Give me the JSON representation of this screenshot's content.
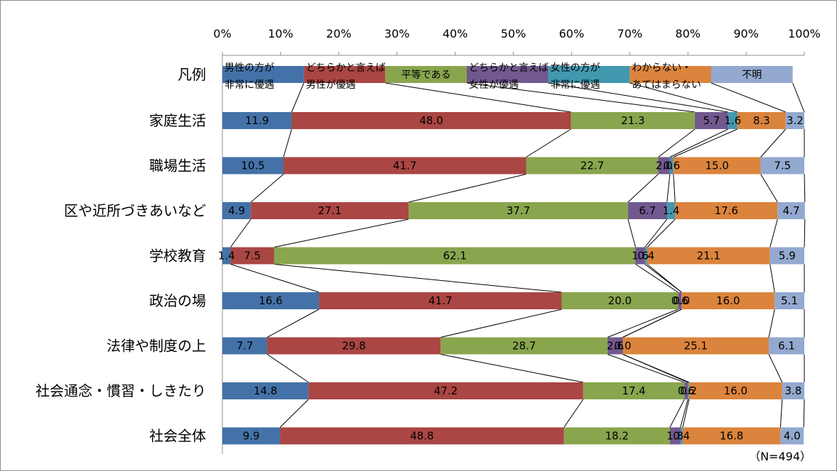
{
  "chart_data": {
    "type": "bar",
    "orientation": "horizontal",
    "stacked": "100%",
    "xlim": [
      0,
      100
    ],
    "x_ticks": [
      "0%",
      "10%",
      "20%",
      "30%",
      "40%",
      "50%",
      "60%",
      "70%",
      "80%",
      "90%",
      "100%"
    ],
    "legend_row_label": "凡例",
    "legend": [
      {
        "name": "男性の方が非常に優遇",
        "line1": "男性の方が",
        "line2": "非常に優遇",
        "color": "#4472a8",
        "width": 14
      },
      {
        "name": "どちらかと言えば男性が優遇",
        "line1": "どちらかと言えば",
        "line2": "男性が優遇",
        "color": "#aa4643",
        "width": 14
      },
      {
        "name": "平等である",
        "line1": "平等である",
        "line2": "",
        "color": "#89a54e",
        "width": 14
      },
      {
        "name": "どちらかと言えば女性が優遇",
        "line1": "どちらかと言えば",
        "line2": "女性が優遇",
        "color": "#71588f",
        "width": 14
      },
      {
        "name": "女性の方が非常に優遇",
        "line1": "女性の方が",
        "line2": "非常に優遇",
        "color": "#4198af",
        "width": 14
      },
      {
        "name": "わからない・あてはまらない",
        "line1": "わからない・",
        "line2": "あてはまらない",
        "color": "#db843d",
        "width": 14
      },
      {
        "name": "不明",
        "line1": "不明",
        "line2": "",
        "color": "#93a9cf",
        "width": 14
      }
    ],
    "categories": [
      "家庭生活",
      "職場生活",
      "区や近所づきあいなど",
      "学校教育",
      "政治の場",
      "法律や制度の上",
      "社会通念・慣習・しきたり",
      "社会全体"
    ],
    "series": [
      {
        "name": "男性の方が非常に優遇",
        "values": [
          11.9,
          10.5,
          4.9,
          1.4,
          16.6,
          7.7,
          14.8,
          9.9
        ]
      },
      {
        "name": "どちらかと言えば男性が優遇",
        "values": [
          48.0,
          41.7,
          27.1,
          7.5,
          41.7,
          29.8,
          47.2,
          48.8
        ]
      },
      {
        "name": "平等である",
        "values": [
          21.3,
          22.7,
          37.7,
          62.1,
          20.0,
          28.7,
          17.4,
          18.2
        ]
      },
      {
        "name": "どちらかと言えば女性が優遇",
        "values": [
          5.7,
          2.0,
          6.7,
          1.6,
          0.6,
          2.6,
          0.6,
          1.8
        ]
      },
      {
        "name": "女性の方が非常に優遇",
        "values": [
          1.6,
          0.6,
          1.4,
          0.4,
          0.0,
          0.0,
          0.2,
          0.4
        ]
      },
      {
        "name": "わからない・あてはまらない",
        "values": [
          8.3,
          15.0,
          17.6,
          21.1,
          16.0,
          25.1,
          16.0,
          16.8
        ]
      },
      {
        "name": "不明",
        "values": [
          3.2,
          7.5,
          4.7,
          5.9,
          5.1,
          6.1,
          3.8,
          4.0
        ]
      }
    ],
    "data_labels": [
      [
        "11.9",
        "48.0",
        "21.3",
        "5.7",
        "1.6",
        "8.3",
        "3.2"
      ],
      [
        "10.5",
        "41.7",
        "22.7",
        "2.0",
        "0.6",
        "15.0",
        "7.5"
      ],
      [
        "4.9",
        "27.1",
        "37.7",
        "6.7",
        "1.4",
        "17.6",
        "4.7"
      ],
      [
        "1.4",
        "7.5",
        "62.1",
        "1.6",
        "0.4",
        "21.1",
        "5.9"
      ],
      [
        "16.6",
        "41.7",
        "20.0",
        "0.6",
        "0.0",
        "16.0",
        "5.1"
      ],
      [
        "7.7",
        "29.8",
        "28.7",
        "2.6",
        "0.0",
        "25.1",
        "6.1"
      ],
      [
        "14.8",
        "47.2",
        "17.4",
        "0.6",
        "0.2",
        "16.0",
        "3.8"
      ],
      [
        "9.9",
        "48.8",
        "18.2",
        "1.8",
        "0.4",
        "16.8",
        "4.0"
      ]
    ],
    "series_lines": true,
    "grid": false,
    "note": "（N=494）"
  }
}
